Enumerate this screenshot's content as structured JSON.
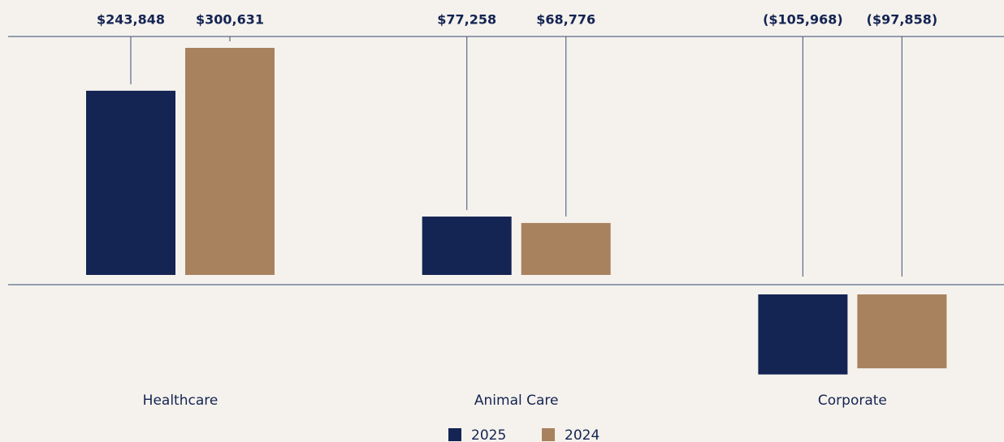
{
  "chart_data": {
    "type": "bar",
    "categories": [
      "Healthcare",
      "Animal Care",
      "Corporate"
    ],
    "series": [
      {
        "name": "2025",
        "color": "#142453",
        "values": [
          243848,
          77258,
          -105968
        ],
        "value_labels": [
          "$243,848",
          "$77,258",
          "($105,968)"
        ]
      },
      {
        "name": "2024",
        "color": "#a8825e",
        "values": [
          300631,
          68776,
          -97858
        ],
        "value_labels": [
          "$300,631",
          "$68,776",
          "($97,858)"
        ]
      }
    ]
  }
}
